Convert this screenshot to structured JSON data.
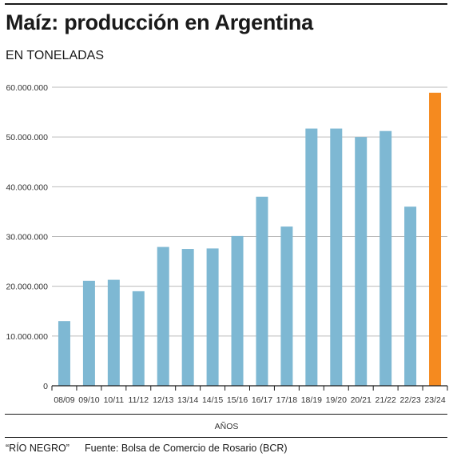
{
  "header": {
    "title": "Maíz: producción en Argentina",
    "subtitle": "EN TONELADAS"
  },
  "footer": {
    "source": "“RÍO NEGRO”",
    "credit": "Fuente: Bolsa de Comercio de Rosario (BCR)"
  },
  "colors": {
    "bar": "#7eb8d3",
    "highlight": "#f58a1f",
    "grid": "#bbbbbb",
    "axis": "#1a1a1a"
  },
  "chart_data": {
    "type": "bar",
    "title": "Maíz: producción en Argentina",
    "subtitle": "EN TONELADAS",
    "xlabel": "AÑOS",
    "ylabel": "",
    "ylim": [
      0,
      60000000
    ],
    "yticks": [
      0,
      10000000,
      20000000,
      30000000,
      40000000,
      50000000,
      60000000
    ],
    "ytick_labels": [
      "0",
      "10.000.000",
      "20.000.000",
      "30.000.000",
      "40.000.000",
      "50.000.000",
      "60.000.000"
    ],
    "grid": true,
    "categories": [
      "08/09",
      "09/10",
      "10/11",
      "11/12",
      "12/13",
      "13/14",
      "14/15",
      "15/16",
      "16/17",
      "17/18",
      "18/19",
      "19/20",
      "20/21",
      "21/22",
      "22/23",
      "23/24"
    ],
    "values": [
      13000000,
      21100000,
      21300000,
      19000000,
      27900000,
      27500000,
      27600000,
      30100000,
      38000000,
      32000000,
      51700000,
      51700000,
      50000000,
      51200000,
      36000000,
      58900000
    ],
    "highlight_category": "23/24"
  }
}
